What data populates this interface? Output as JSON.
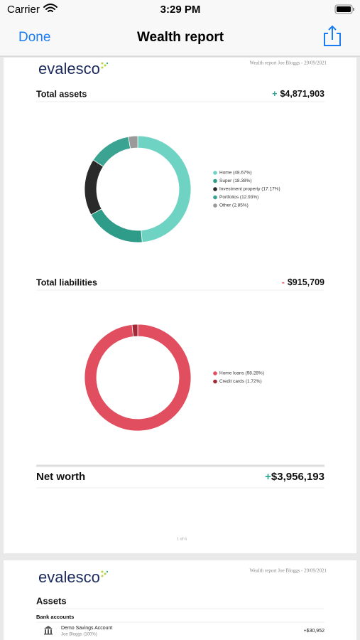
{
  "status_bar": {
    "carrier": "Carrier",
    "time": "3:29 PM"
  },
  "nav": {
    "done": "Done",
    "title": "Wealth report"
  },
  "pages": [
    {
      "logo": "evalesco",
      "header": "Wealth report Joe Bloggs - 29/09/2021",
      "assets": {
        "label": "Total assets",
        "sign": "+",
        "amount": "$4,871,903"
      },
      "liabilities": {
        "label": "Total liabilities",
        "sign": "-",
        "amount": "$915,709"
      },
      "net_worth": {
        "label": "Net worth",
        "sign": "+",
        "amount": "$3,956,193"
      },
      "page_number": "1 of 6"
    },
    {
      "logo": "evalesco",
      "header": "Wealth report Joe Bloggs - 29/09/2021",
      "section": "Assets",
      "subsection": "Bank accounts",
      "rows": [
        {
          "name": "Demo Savings Account",
          "owner": "Joe Bloggs (100%)",
          "amount": "+$30,952"
        }
      ]
    }
  ],
  "chart_data": [
    {
      "type": "pie",
      "donut": true,
      "categories": [
        "Home (48.67%)",
        "Super (18.38%)",
        "Investment property (17.17%)",
        "Portfolios (12.93%)",
        "Other (2.85%)"
      ],
      "values": [
        48.67,
        18.38,
        17.17,
        12.93,
        2.85
      ],
      "colors": [
        "#6fd3c4",
        "#2f9b89",
        "#2a2a2a",
        "#3aa391",
        "#9a9a9a"
      ]
    },
    {
      "type": "pie",
      "donut": true,
      "categories": [
        "Home loans (98.28%)",
        "Credit cards (1.72%)"
      ],
      "values": [
        98.28,
        1.72
      ],
      "colors": [
        "#e04e5f",
        "#a22a38"
      ]
    }
  ]
}
